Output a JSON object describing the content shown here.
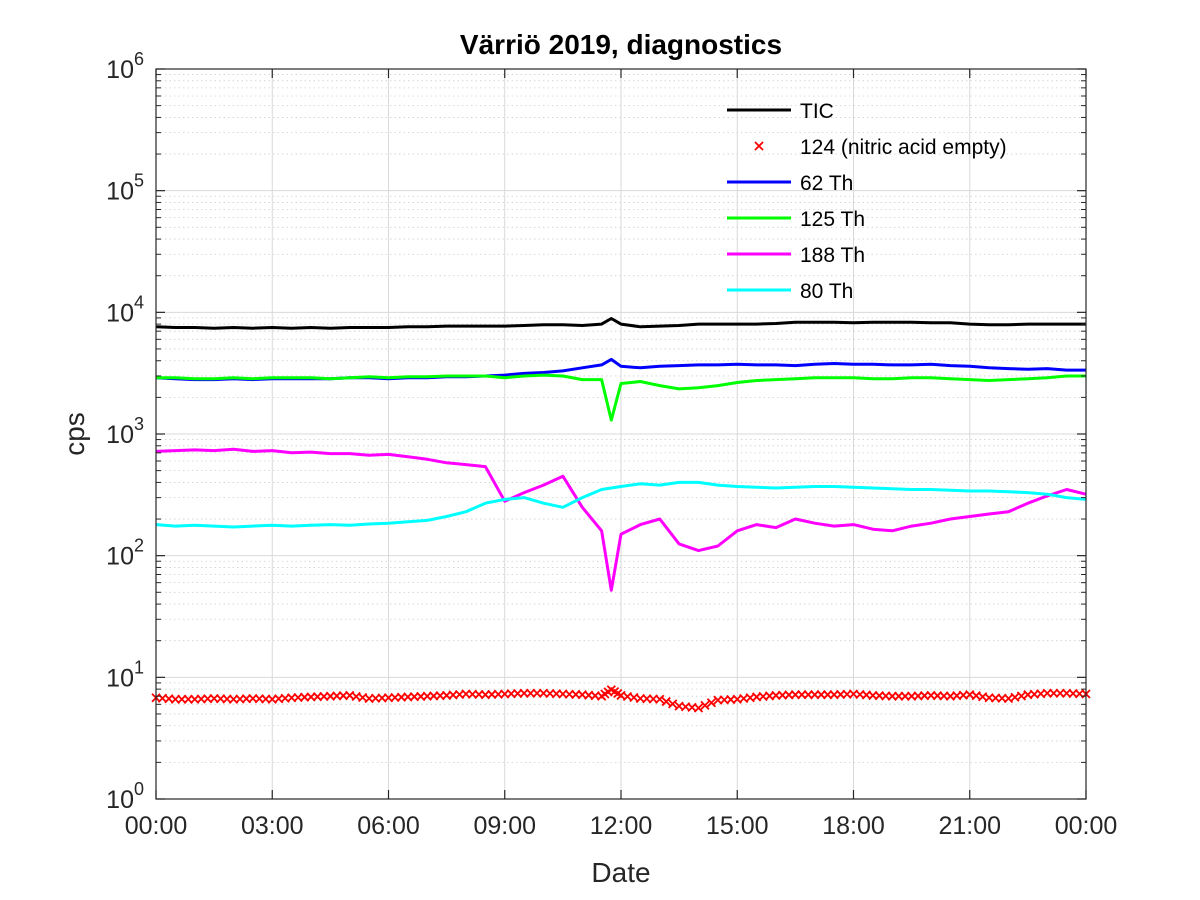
{
  "chart_data": {
    "type": "line",
    "title": "Värriö 2019, diagnostics",
    "xlabel": "Date",
    "ylabel": "cps",
    "y_scale": "log",
    "ylim": [
      1,
      1000000
    ],
    "xlim": [
      "00:00",
      "24:00"
    ],
    "grid": true,
    "minor_grid": true,
    "legend_position": "top-right",
    "x_tick_labels": [
      "00:00",
      "03:00",
      "06:00",
      "09:00",
      "12:00",
      "15:00",
      "18:00",
      "21:00",
      "00:00"
    ],
    "y_tick_labels": [
      {
        "base": "10",
        "exp": "0"
      },
      {
        "base": "10",
        "exp": "1"
      },
      {
        "base": "10",
        "exp": "2"
      },
      {
        "base": "10",
        "exp": "3"
      },
      {
        "base": "10",
        "exp": "4"
      },
      {
        "base": "10",
        "exp": "5"
      },
      {
        "base": "10",
        "exp": "6"
      }
    ],
    "x_hours": [
      0,
      0.5,
      1,
      1.5,
      2,
      2.5,
      3,
      3.5,
      4,
      4.5,
      5,
      5.5,
      6,
      6.5,
      7,
      7.5,
      8,
      8.5,
      9,
      9.5,
      10,
      10.5,
      11,
      11.5,
      11.75,
      12,
      12.5,
      13,
      13.5,
      14,
      14.5,
      15,
      15.5,
      16,
      16.5,
      17,
      17.5,
      18,
      18.5,
      19,
      19.5,
      20,
      20.5,
      21,
      21.5,
      22,
      22.5,
      23,
      23.5,
      24
    ],
    "series": [
      {
        "name": "TIC",
        "color": "#000000",
        "marker": "line",
        "values": [
          7600,
          7500,
          7500,
          7400,
          7500,
          7400,
          7500,
          7400,
          7500,
          7400,
          7500,
          7500,
          7500,
          7600,
          7600,
          7700,
          7700,
          7700,
          7700,
          7800,
          7900,
          7900,
          7800,
          8000,
          8900,
          8000,
          7600,
          7700,
          7800,
          8000,
          8000,
          8000,
          8000,
          8100,
          8300,
          8300,
          8300,
          8200,
          8300,
          8300,
          8300,
          8200,
          8200,
          8000,
          7900,
          7900,
          8000,
          8000,
          8000,
          8000
        ]
      },
      {
        "name": "124 (nitric acid empty)",
        "color": "#ff0000",
        "marker": "x",
        "values": [
          6.8,
          6.6,
          6.6,
          6.7,
          6.6,
          6.7,
          6.6,
          6.8,
          6.9,
          7.0,
          7.1,
          6.7,
          6.8,
          6.9,
          7.0,
          7.1,
          7.3,
          7.2,
          7.3,
          7.4,
          7.4,
          7.3,
          7.2,
          7.0,
          7.9,
          7.1,
          6.7,
          6.6,
          5.8,
          5.6,
          6.5,
          6.6,
          6.9,
          7.1,
          7.2,
          7.2,
          7.2,
          7.3,
          7.1,
          7.0,
          7.0,
          7.1,
          7.0,
          7.2,
          6.8,
          6.7,
          7.2,
          7.4,
          7.4,
          7.3
        ]
      },
      {
        "name": "62 Th",
        "color": "#0000ff",
        "marker": "line",
        "values": [
          2900,
          2850,
          2800,
          2800,
          2850,
          2800,
          2850,
          2850,
          2850,
          2850,
          2900,
          2900,
          2850,
          2900,
          2900,
          2950,
          2950,
          3000,
          3050,
          3150,
          3200,
          3300,
          3500,
          3700,
          4100,
          3600,
          3500,
          3600,
          3650,
          3700,
          3700,
          3750,
          3700,
          3700,
          3650,
          3750,
          3800,
          3750,
          3750,
          3700,
          3700,
          3750,
          3650,
          3600,
          3500,
          3450,
          3400,
          3450,
          3350,
          3350
        ]
      },
      {
        "name": "125 Th",
        "color": "#00ff00",
        "marker": "line",
        "values": [
          2900,
          2900,
          2850,
          2850,
          2900,
          2850,
          2900,
          2900,
          2900,
          2850,
          2900,
          2950,
          2900,
          2950,
          2950,
          3000,
          3000,
          3000,
          2900,
          3000,
          3050,
          3000,
          2800,
          2800,
          1300,
          2600,
          2700,
          2500,
          2350,
          2400,
          2500,
          2650,
          2750,
          2800,
          2850,
          2900,
          2900,
          2900,
          2850,
          2850,
          2900,
          2900,
          2850,
          2800,
          2750,
          2800,
          2850,
          2900,
          3000,
          3000
        ]
      },
      {
        "name": "188 Th",
        "color": "#ff00ff",
        "marker": "line",
        "values": [
          720,
          730,
          740,
          730,
          750,
          720,
          730,
          700,
          710,
          690,
          690,
          670,
          680,
          650,
          620,
          580,
          560,
          540,
          280,
          330,
          380,
          450,
          250,
          160,
          52,
          150,
          180,
          200,
          125,
          110,
          120,
          160,
          180,
          170,
          200,
          185,
          175,
          180,
          165,
          160,
          175,
          185,
          200,
          210,
          220,
          230,
          270,
          310,
          350,
          320
        ]
      },
      {
        "name": "80 Th",
        "color": "#00ffff",
        "marker": "line",
        "values": [
          180,
          175,
          178,
          175,
          172,
          175,
          178,
          175,
          178,
          180,
          178,
          182,
          185,
          190,
          195,
          210,
          230,
          270,
          290,
          300,
          270,
          250,
          300,
          350,
          360,
          370,
          390,
          380,
          400,
          400,
          380,
          370,
          365,
          360,
          365,
          370,
          370,
          365,
          360,
          355,
          350,
          350,
          345,
          340,
          340,
          335,
          330,
          320,
          300,
          290
        ]
      }
    ]
  }
}
